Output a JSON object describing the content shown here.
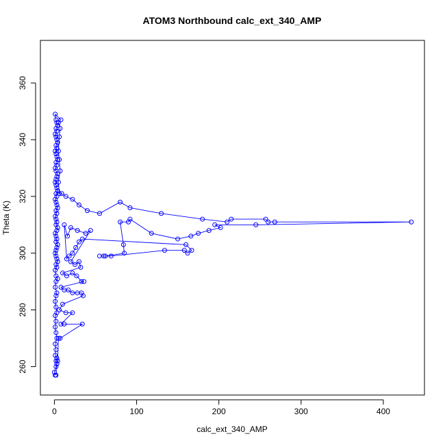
{
  "chart_data": {
    "type": "scatter",
    "title": "ATOM3 Northbound calc_ext_340_AMP",
    "xlabel": "calc_ext_340_AMP",
    "ylabel": "Theta (K)",
    "xlim": [
      -17,
      450
    ],
    "ylim": [
      250,
      375
    ],
    "xticks": [
      0,
      100,
      200,
      300,
      400
    ],
    "yticks": [
      260,
      280,
      300,
      320,
      340,
      360
    ],
    "grid": false,
    "legend": "none",
    "series_color": "#0000ff",
    "points": [
      [
        1,
        257
      ],
      [
        0,
        258
      ],
      [
        2,
        260
      ],
      [
        3,
        261
      ],
      [
        2,
        262
      ],
      [
        3,
        263
      ],
      [
        1,
        264
      ],
      [
        2,
        266
      ],
      [
        1,
        268
      ],
      [
        3,
        270
      ],
      [
        2,
        272
      ],
      [
        1,
        274
      ],
      [
        2,
        276
      ],
      [
        1,
        278
      ],
      [
        3,
        279
      ],
      [
        2,
        281
      ],
      [
        1,
        283
      ],
      [
        2,
        285
      ],
      [
        3,
        286
      ],
      [
        1,
        288
      ],
      [
        2,
        290
      ],
      [
        4,
        291
      ],
      [
        2,
        292
      ],
      [
        1,
        294
      ],
      [
        3,
        295
      ],
      [
        2,
        296
      ],
      [
        4,
        297
      ],
      [
        3,
        298
      ],
      [
        2,
        299
      ],
      [
        1,
        300
      ],
      [
        2,
        301
      ],
      [
        3,
        302
      ],
      [
        4,
        303
      ],
      [
        2,
        304
      ],
      [
        3,
        305
      ],
      [
        2,
        306
      ],
      [
        1,
        307
      ],
      [
        3,
        308
      ],
      [
        4,
        309
      ],
      [
        2,
        310
      ],
      [
        3,
        311
      ],
      [
        2,
        312
      ],
      [
        1,
        313
      ],
      [
        3,
        314
      ],
      [
        2,
        315
      ],
      [
        4,
        316
      ],
      [
        3,
        317
      ],
      [
        2,
        318
      ],
      [
        1,
        319
      ],
      [
        3,
        320
      ],
      [
        2,
        321
      ],
      [
        4,
        322
      ],
      [
        3,
        323
      ],
      [
        2,
        324
      ],
      [
        1,
        325
      ],
      [
        2,
        326
      ],
      [
        3,
        327
      ],
      [
        4,
        328
      ],
      [
        2,
        329
      ],
      [
        1,
        330
      ],
      [
        3,
        331
      ],
      [
        2,
        332
      ],
      [
        4,
        333
      ],
      [
        3,
        334
      ],
      [
        2,
        335
      ],
      [
        1,
        336
      ],
      [
        3,
        337
      ],
      [
        2,
        338
      ],
      [
        4,
        339
      ],
      [
        3,
        340
      ],
      [
        2,
        341
      ],
      [
        1,
        342
      ],
      [
        3,
        343
      ],
      [
        2,
        344
      ],
      [
        4,
        345
      ],
      [
        3,
        346
      ],
      [
        2,
        347
      ],
      [
        1,
        349
      ],
      [
        8,
        347
      ],
      [
        5,
        346
      ],
      [
        7,
        344
      ],
      [
        6,
        341
      ],
      [
        5,
        336
      ],
      [
        6,
        333
      ],
      [
        7,
        329
      ],
      [
        5,
        325
      ],
      [
        6,
        321
      ],
      [
        9,
        321
      ],
      [
        14,
        320
      ],
      [
        22,
        319
      ],
      [
        30,
        317
      ],
      [
        40,
        315
      ],
      [
        55,
        314
      ],
      [
        80,
        318
      ],
      [
        92,
        316
      ],
      [
        130,
        314
      ],
      [
        180,
        312
      ],
      [
        210,
        311
      ],
      [
        215,
        312
      ],
      [
        257,
        312
      ],
      [
        260,
        311
      ],
      [
        268,
        311
      ],
      [
        434,
        311
      ],
      [
        245,
        310
      ],
      [
        195,
        310
      ],
      [
        202,
        309
      ],
      [
        188,
        308
      ],
      [
        175,
        307
      ],
      [
        166,
        306
      ],
      [
        150,
        305
      ],
      [
        118,
        307
      ],
      [
        92,
        312
      ],
      [
        90,
        311
      ],
      [
        80,
        311
      ],
      [
        84,
        303
      ],
      [
        85,
        300
      ],
      [
        62,
        299
      ],
      [
        55,
        299
      ],
      [
        60,
        299
      ],
      [
        69,
        299
      ],
      [
        134,
        301
      ],
      [
        158,
        301
      ],
      [
        162,
        300
      ],
      [
        167,
        301
      ],
      [
        160,
        303
      ],
      [
        34,
        305
      ],
      [
        30,
        304
      ],
      [
        26,
        302
      ],
      [
        22,
        300
      ],
      [
        18,
        299
      ],
      [
        15,
        298
      ],
      [
        12,
        310
      ],
      [
        16,
        306
      ],
      [
        20,
        309
      ],
      [
        28,
        308
      ],
      [
        38,
        307
      ],
      [
        44,
        308
      ],
      [
        20,
        297
      ],
      [
        25,
        296
      ],
      [
        30,
        297
      ],
      [
        32,
        295
      ],
      [
        10,
        293
      ],
      [
        15,
        292
      ],
      [
        22,
        293
      ],
      [
        27,
        292
      ],
      [
        33,
        290
      ],
      [
        36,
        290
      ],
      [
        8,
        288
      ],
      [
        12,
        287
      ],
      [
        17,
        287
      ],
      [
        22,
        286
      ],
      [
        28,
        286
      ],
      [
        33,
        286
      ],
      [
        35,
        285
      ],
      [
        10,
        282
      ],
      [
        6,
        280
      ],
      [
        14,
        279
      ],
      [
        22,
        279
      ],
      [
        8,
        275
      ],
      [
        12,
        275
      ],
      [
        34,
        275
      ],
      [
        7,
        270
      ],
      [
        5,
        270
      ],
      [
        4,
        262
      ],
      [
        3,
        261
      ],
      [
        2,
        257
      ]
    ]
  }
}
